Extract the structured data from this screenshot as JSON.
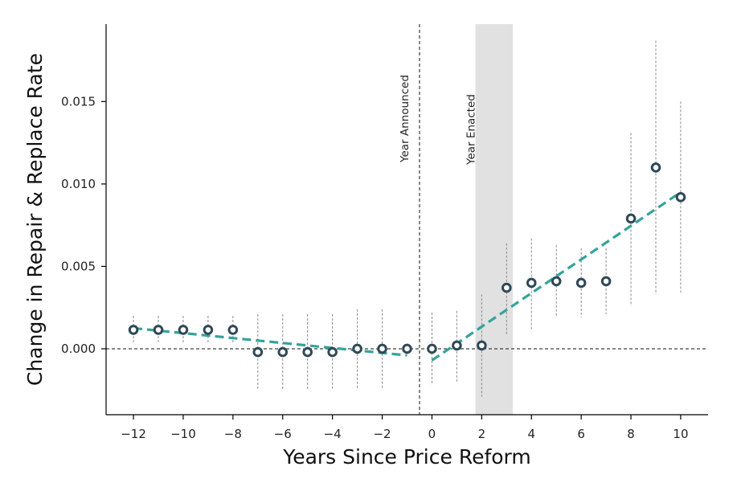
{
  "chart_data": {
    "type": "scatter",
    "xlabel": "Years Since Price Reform",
    "ylabel": "Change in Repair & Replace Rate",
    "xlim": [
      -13.1,
      11.1
    ],
    "ylim": [
      -0.004,
      0.0197
    ],
    "x_ticks": [
      -12,
      -10,
      -8,
      -6,
      -4,
      -2,
      0,
      2,
      4,
      6,
      8,
      10
    ],
    "x_tick_labels": [
      "−12",
      "−10",
      "−8",
      "−6",
      "−4",
      "−2",
      "0",
      "2",
      "4",
      "6",
      "8",
      "10"
    ],
    "y_ticks": [
      0.0,
      0.005,
      0.01,
      0.015
    ],
    "y_tick_labels": [
      "0.000",
      "0.005",
      "0.010",
      "0.015"
    ],
    "grid": false,
    "points": [
      {
        "x": -12,
        "y": 0.00115,
        "lo": 0.00035,
        "hi": 0.002
      },
      {
        "x": -11,
        "y": 0.00115,
        "lo": 0.00035,
        "hi": 0.002
      },
      {
        "x": -10,
        "y": 0.00115,
        "lo": 0.00035,
        "hi": 0.002
      },
      {
        "x": -9,
        "y": 0.00115,
        "lo": 0.00035,
        "hi": 0.002
      },
      {
        "x": -8,
        "y": 0.00115,
        "lo": 0.00035,
        "hi": 0.002
      },
      {
        "x": -7,
        "y": -0.0002,
        "lo": -0.0025,
        "hi": 0.0021
      },
      {
        "x": -6,
        "y": -0.0002,
        "lo": -0.0025,
        "hi": 0.0021
      },
      {
        "x": -5,
        "y": -0.0002,
        "lo": -0.0025,
        "hi": 0.0021
      },
      {
        "x": -4,
        "y": -0.0002,
        "lo": -0.0025,
        "hi": 0.0021
      },
      {
        "x": -3,
        "y": 0.0,
        "lo": -0.0025,
        "hi": 0.0024
      },
      {
        "x": -2,
        "y": 0.0,
        "lo": -0.0025,
        "hi": 0.0024
      },
      {
        "x": -1,
        "y": 0.0,
        "lo": -0.0001,
        "hi": 0.0001
      },
      {
        "x": 0,
        "y": 0.0,
        "lo": -0.0022,
        "hi": 0.0022
      },
      {
        "x": 1,
        "y": 0.0002,
        "lo": -0.002,
        "hi": 0.0023
      },
      {
        "x": 2,
        "y": 0.0002,
        "lo": -0.0029,
        "hi": 0.0033
      },
      {
        "x": 3,
        "y": 0.0037,
        "lo": 0.0008,
        "hi": 0.0064
      },
      {
        "x": 4,
        "y": 0.004,
        "lo": 0.0011,
        "hi": 0.0067
      },
      {
        "x": 5,
        "y": 0.0041,
        "lo": 0.0019,
        "hi": 0.0063
      },
      {
        "x": 6,
        "y": 0.004,
        "lo": 0.0019,
        "hi": 0.0061
      },
      {
        "x": 7,
        "y": 0.0041,
        "lo": 0.0021,
        "hi": 0.0061
      },
      {
        "x": 8,
        "y": 0.0079,
        "lo": 0.0026,
        "hi": 0.0131
      },
      {
        "x": 9,
        "y": 0.011,
        "lo": 0.0033,
        "hi": 0.0187
      },
      {
        "x": 10,
        "y": 0.0092,
        "lo": 0.0034,
        "hi": 0.015
      }
    ],
    "trend_lines": [
      {
        "x": [
          -12,
          -1
        ],
        "y": [
          0.00125,
          -0.0004
        ]
      },
      {
        "x": [
          0,
          10
        ],
        "y": [
          -0.0007,
          0.0095
        ]
      }
    ],
    "vertical_lines": [
      {
        "x": -0.5,
        "label": "Year Announced"
      }
    ],
    "shaded_regions": [
      {
        "x": [
          1.75,
          3.25
        ],
        "label": "Year Enacted"
      }
    ],
    "reference_line_y": 0.0,
    "colors": {
      "marker": "#2f4858",
      "trend": "#35a39a",
      "errorbar": "#8a8a8a",
      "shade": "#e1e1e1",
      "axis": "#000000"
    }
  }
}
